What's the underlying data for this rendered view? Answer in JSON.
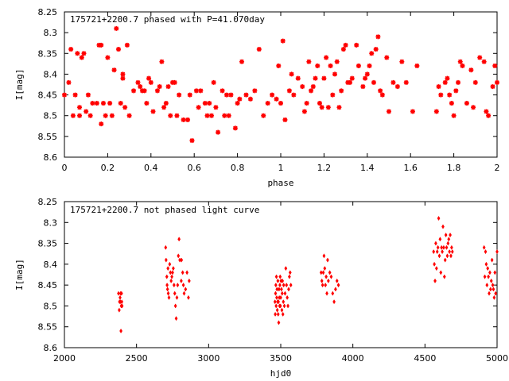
{
  "chart_data": [
    {
      "type": "scatter",
      "title": "175721+2200.7 phased with P=41.070day",
      "xlabel": "phase",
      "ylabel": "I[mag]",
      "xlim": [
        0,
        2
      ],
      "ylim": [
        8.6,
        8.25
      ],
      "y_inverted": true,
      "xticks": [
        "0",
        "0.2",
        "0.4",
        "0.6",
        "0.8",
        "1",
        "1.2",
        "1.4",
        "1.6",
        "1.8",
        "2"
      ],
      "yticks": [
        "8.25",
        "8.3",
        "8.35",
        "8.4",
        "8.45",
        "8.5",
        "8.55",
        "8.6"
      ],
      "grid": false,
      "marker": "star",
      "color": "#ff0000",
      "series": [
        {
          "x": [
            0.0,
            0.02,
            0.03,
            0.04,
            0.05,
            0.06,
            0.07,
            0.07,
            0.08,
            0.09,
            0.1,
            0.11,
            0.12,
            0.13,
            0.15,
            0.16,
            0.17,
            0.17,
            0.18,
            0.19,
            0.2,
            0.21,
            0.22,
            0.23,
            0.24,
            0.25,
            0.26,
            0.27,
            0.27,
            0.28,
            0.29,
            0.3,
            0.32,
            0.34,
            0.35,
            0.36,
            0.37,
            0.38,
            0.39,
            0.4,
            0.41,
            0.43,
            0.44,
            0.45,
            0.46,
            0.47,
            0.48,
            0.49,
            0.5,
            0.51,
            0.52,
            0.53,
            0.55,
            0.57,
            0.58,
            0.59,
            0.61,
            0.62,
            0.63,
            0.65,
            0.66,
            0.67,
            0.68,
            0.69,
            0.7,
            0.71,
            0.73,
            0.74,
            0.75,
            0.76,
            0.77,
            0.79,
            0.8,
            0.81,
            0.82,
            0.84,
            0.86,
            0.88,
            0.9,
            0.92,
            0.94,
            0.96,
            0.98,
            0.99,
            1.0,
            1.01,
            1.02,
            1.04,
            1.05,
            1.06,
            1.08,
            1.1,
            1.11,
            1.12,
            1.13,
            1.14,
            1.15,
            1.16,
            1.17,
            1.18,
            1.19,
            1.2,
            1.21,
            1.22,
            1.23,
            1.24,
            1.25,
            1.26,
            1.27,
            1.28,
            1.29,
            1.3,
            1.31,
            1.32,
            1.33,
            1.35,
            1.36,
            1.38,
            1.39,
            1.4,
            1.41,
            1.42,
            1.43,
            1.44,
            1.45,
            1.46,
            1.47,
            1.49,
            1.5,
            1.52,
            1.54,
            1.56,
            1.58,
            1.61,
            1.63,
            1.72,
            1.73,
            1.74,
            1.76,
            1.77,
            1.78,
            1.79,
            1.8,
            1.81,
            1.82,
            1.83,
            1.84,
            1.86,
            1.88,
            1.89,
            1.9,
            1.92,
            1.94,
            1.95,
            1.96,
            1.98,
            1.99,
            2.0
          ],
          "y": [
            8.45,
            8.42,
            8.34,
            8.5,
            8.45,
            8.35,
            8.5,
            8.48,
            8.36,
            8.35,
            8.49,
            8.45,
            8.5,
            8.47,
            8.47,
            8.33,
            8.33,
            8.52,
            8.47,
            8.5,
            8.36,
            8.47,
            8.5,
            8.39,
            8.29,
            8.34,
            8.47,
            8.41,
            8.4,
            8.48,
            8.33,
            8.5,
            8.44,
            8.42,
            8.43,
            8.44,
            8.44,
            8.47,
            8.41,
            8.42,
            8.49,
            8.44,
            8.43,
            8.37,
            8.48,
            8.47,
            8.43,
            8.5,
            8.42,
            8.42,
            8.5,
            8.45,
            8.51,
            8.51,
            8.45,
            8.56,
            8.44,
            8.48,
            8.44,
            8.47,
            8.5,
            8.47,
            8.5,
            8.42,
            8.48,
            8.54,
            8.44,
            8.5,
            8.45,
            8.5,
            8.45,
            8.53,
            8.47,
            8.46,
            8.37,
            8.45,
            8.46,
            8.44,
            8.34,
            8.5,
            8.47,
            8.45,
            8.46,
            8.38,
            8.47,
            8.32,
            8.51,
            8.44,
            8.4,
            8.45,
            8.41,
            8.43,
            8.49,
            8.47,
            8.37,
            8.44,
            8.43,
            8.41,
            8.38,
            8.47,
            8.48,
            8.41,
            8.36,
            8.48,
            8.38,
            8.45,
            8.4,
            8.37,
            8.48,
            8.44,
            8.34,
            8.33,
            8.42,
            8.42,
            8.41,
            8.33,
            8.38,
            8.43,
            8.41,
            8.4,
            8.38,
            8.35,
            8.42,
            8.34,
            8.31,
            8.44,
            8.45,
            8.36,
            8.49,
            8.42,
            8.43,
            8.37,
            8.42,
            8.49,
            8.38,
            8.49,
            8.43,
            8.45,
            8.42,
            8.41,
            8.45,
            8.47,
            8.5,
            8.44,
            8.42,
            8.37,
            8.38,
            8.47,
            8.39,
            8.48,
            8.42,
            8.36,
            8.37,
            8.49,
            8.5,
            8.43,
            8.38,
            8.42
          ]
        }
      ]
    },
    {
      "type": "scatter",
      "title": "175721+2200.7 not phased light curve",
      "xlabel": "hjd0",
      "ylabel": "I[mag]",
      "xlim": [
        2000,
        5000
      ],
      "ylim": [
        8.6,
        8.25
      ],
      "y_inverted": true,
      "xticks": [
        "2000",
        "2500",
        "3000",
        "3500",
        "4000",
        "4500",
        "5000"
      ],
      "yticks": [
        "8.25",
        "8.3",
        "8.35",
        "8.4",
        "8.45",
        "8.5",
        "8.55",
        "8.6"
      ],
      "grid": false,
      "marker": "diamond",
      "color": "#ff0000",
      "series": [
        {
          "x": [
            2375,
            2380,
            2382,
            2386,
            2388,
            2390,
            2392,
            2394,
            2396,
            2398,
            2400,
            2702,
            2705,
            2710,
            2712,
            2715,
            2718,
            2720,
            2725,
            2730,
            2735,
            2740,
            2745,
            2750,
            2755,
            2760,
            2765,
            2770,
            2775,
            2780,
            2785,
            2790,
            2795,
            2800,
            2810,
            2812,
            2820,
            2825,
            2830,
            2840,
            2850,
            2860,
            2865,
            3460,
            3462,
            3464,
            3466,
            3468,
            3470,
            3472,
            3474,
            3476,
            3478,
            3480,
            3482,
            3484,
            3486,
            3488,
            3490,
            3492,
            3494,
            3496,
            3498,
            3500,
            3502,
            3505,
            3508,
            3510,
            3512,
            3515,
            3518,
            3520,
            3525,
            3530,
            3535,
            3540,
            3545,
            3550,
            3555,
            3560,
            3565,
            3570,
            3780,
            3785,
            3790,
            3795,
            3800,
            3805,
            3810,
            3815,
            3820,
            3825,
            3830,
            3840,
            3850,
            3860,
            3870,
            3880,
            3890,
            3900,
            4560,
            4565,
            4570,
            4575,
            4580,
            4585,
            4590,
            4595,
            4600,
            4605,
            4610,
            4615,
            4620,
            4625,
            4630,
            4635,
            4640,
            4645,
            4650,
            4655,
            4660,
            4665,
            4670,
            4675,
            4680,
            4685,
            4690,
            4910,
            4915,
            4920,
            4925,
            4930,
            4935,
            4940,
            4945,
            4950,
            4955,
            4960,
            4965,
            4970,
            4975,
            4980,
            4985,
            4990,
            5000
          ],
          "y": [
            8.47,
            8.51,
            8.49,
            8.48,
            8.49,
            8.47,
            8.56,
            8.5,
            8.47,
            8.49,
            8.5,
            8.36,
            8.39,
            8.43,
            8.45,
            8.46,
            8.41,
            8.47,
            8.48,
            8.4,
            8.42,
            8.44,
            8.43,
            8.42,
            8.41,
            8.45,
            8.47,
            8.5,
            8.53,
            8.48,
            8.45,
            8.38,
            8.34,
            8.39,
            8.44,
            8.39,
            8.42,
            8.45,
            8.47,
            8.46,
            8.42,
            8.48,
            8.44,
            8.49,
            8.52,
            8.47,
            8.45,
            8.5,
            8.43,
            8.48,
            8.46,
            8.51,
            8.49,
            8.44,
            8.52,
            8.49,
            8.54,
            8.46,
            8.48,
            8.5,
            8.45,
            8.43,
            8.5,
            8.48,
            8.44,
            8.46,
            8.51,
            8.47,
            8.44,
            8.52,
            8.49,
            8.45,
            8.5,
            8.47,
            8.41,
            8.45,
            8.48,
            8.5,
            8.46,
            8.43,
            8.42,
            8.45,
            8.42,
            8.44,
            8.45,
            8.42,
            8.38,
            8.41,
            8.45,
            8.43,
            8.47,
            8.39,
            8.44,
            8.42,
            8.43,
            8.47,
            8.49,
            8.46,
            8.44,
            8.45,
            8.37,
            8.4,
            8.44,
            8.35,
            8.41,
            8.37,
            8.36,
            8.29,
            8.38,
            8.34,
            8.42,
            8.36,
            8.37,
            8.31,
            8.36,
            8.43,
            8.39,
            8.33,
            8.36,
            8.38,
            8.35,
            8.34,
            8.37,
            8.33,
            8.38,
            8.36,
            8.37,
            8.36,
            8.43,
            8.37,
            8.4,
            8.45,
            8.41,
            8.43,
            8.47,
            8.42,
            8.46,
            8.44,
            8.39,
            8.45,
            8.46,
            8.48,
            8.42,
            8.47,
            8.37
          ]
        }
      ]
    }
  ]
}
